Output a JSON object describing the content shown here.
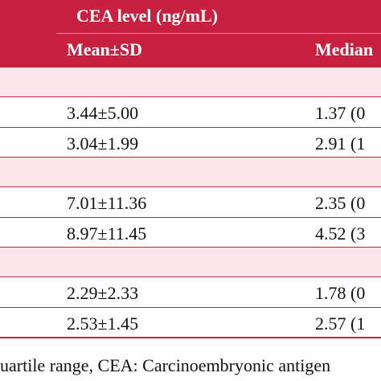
{
  "header": {
    "group_title": "CEA level (ng/mL)",
    "columns": [
      "Mean±SD",
      "Median"
    ]
  },
  "rows": [
    [
      "3.44±5.00",
      "1.37 (0"
    ],
    [
      "3.04±1.99",
      "2.91 (1"
    ],
    [
      "7.01±11.36",
      "2.35 (0"
    ],
    [
      "8.97±11.45",
      "4.52 (3"
    ],
    [
      "2.29±2.33",
      "1.78 (0"
    ],
    [
      "2.53±1.45",
      "2.57 (1"
    ]
  ],
  "footer": "uartile range, CEA: Carcinoembryonic antigen"
}
